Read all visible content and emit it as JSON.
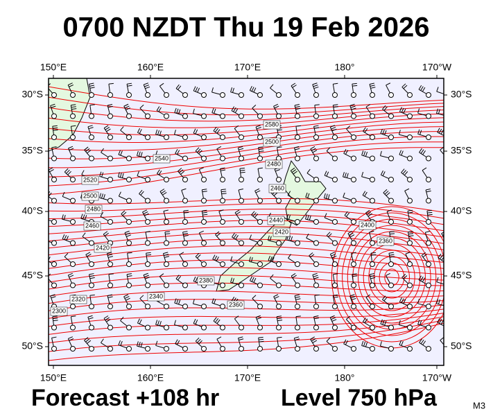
{
  "header": {
    "title": "0700 NZDT Thu 19 Feb 2026"
  },
  "axes": {
    "top": [
      "150°E",
      "160°E",
      "170°E",
      "180°",
      "170°W"
    ],
    "bottom": [
      "150°E",
      "160°E",
      "170°E",
      "180°",
      "170°W"
    ],
    "left": [
      "30°S",
      "35°S",
      "40°S",
      "45°S",
      "50°S"
    ],
    "right": [
      "30°S",
      "35°S",
      "40°S",
      "45°S",
      "50°S"
    ]
  },
  "contour_labels": [
    "2580",
    "2500",
    "2540",
    "2480",
    "2520",
    "2500",
    "2460",
    "2480",
    "2460",
    "2420",
    "2440",
    "2420",
    "2400",
    "2360",
    "2380",
    "2360",
    "2340",
    "2320",
    "2300"
  ],
  "footer": {
    "forecast": "Forecast +108 hr",
    "level": "Level 750 hPa",
    "model": "M3"
  }
}
